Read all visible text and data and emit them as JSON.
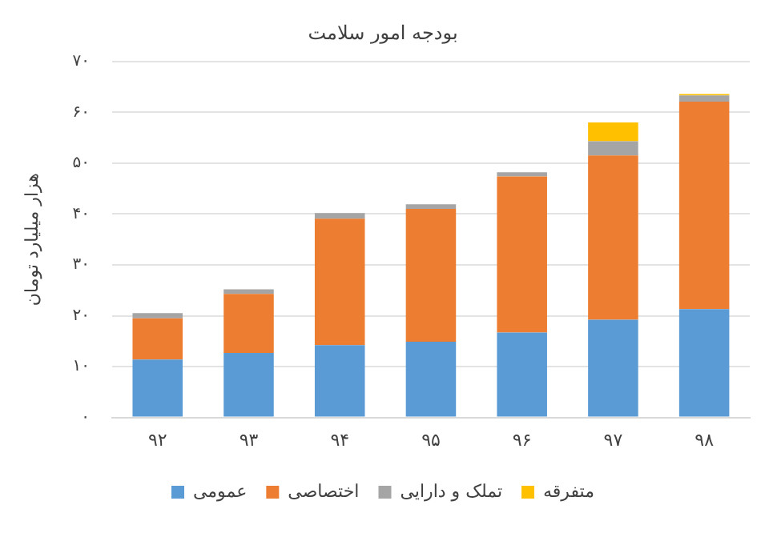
{
  "chart_data": {
    "type": "bar",
    "title": "بودجه امور سلامت",
    "ylabel": "هزار میلیارد تومان",
    "categories": [
      "۹۲",
      "۹۳",
      "۹۴",
      "۹۵",
      "۹۶",
      "۹۷",
      "۹۸"
    ],
    "stacked": true,
    "series": [
      {
        "name": "عمومی",
        "color": "#5b9bd5",
        "values": [
          11.4,
          12.7,
          14.2,
          14.9,
          16.7,
          19.2,
          21.3
        ]
      },
      {
        "name": "اختصاصی",
        "color": "#ed7d31",
        "values": [
          8.1,
          11.6,
          24.9,
          26.1,
          30.7,
          32.3,
          40.8
        ]
      },
      {
        "name": "تملک و دارایی",
        "color": "#a5a5a5",
        "values": [
          1.0,
          0.9,
          1.1,
          0.9,
          0.8,
          2.8,
          1.2
        ]
      },
      {
        "name": "متفرقه",
        "color": "#ffc000",
        "values": [
          0,
          0,
          0,
          0,
          0,
          3.7,
          0.3
        ]
      }
    ],
    "ylim": [
      0,
      70
    ],
    "yticks": [
      {
        "value": 0,
        "label": "۰"
      },
      {
        "value": 10,
        "label": "۱۰"
      },
      {
        "value": 20,
        "label": "۲۰"
      },
      {
        "value": 30,
        "label": "۳۰"
      },
      {
        "value": 40,
        "label": "۴۰"
      },
      {
        "value": 50,
        "label": "۵۰"
      },
      {
        "value": 60,
        "label": "۶۰"
      },
      {
        "value": 70,
        "label": "۷۰"
      }
    ],
    "grid": "y",
    "legend": "bottom"
  }
}
